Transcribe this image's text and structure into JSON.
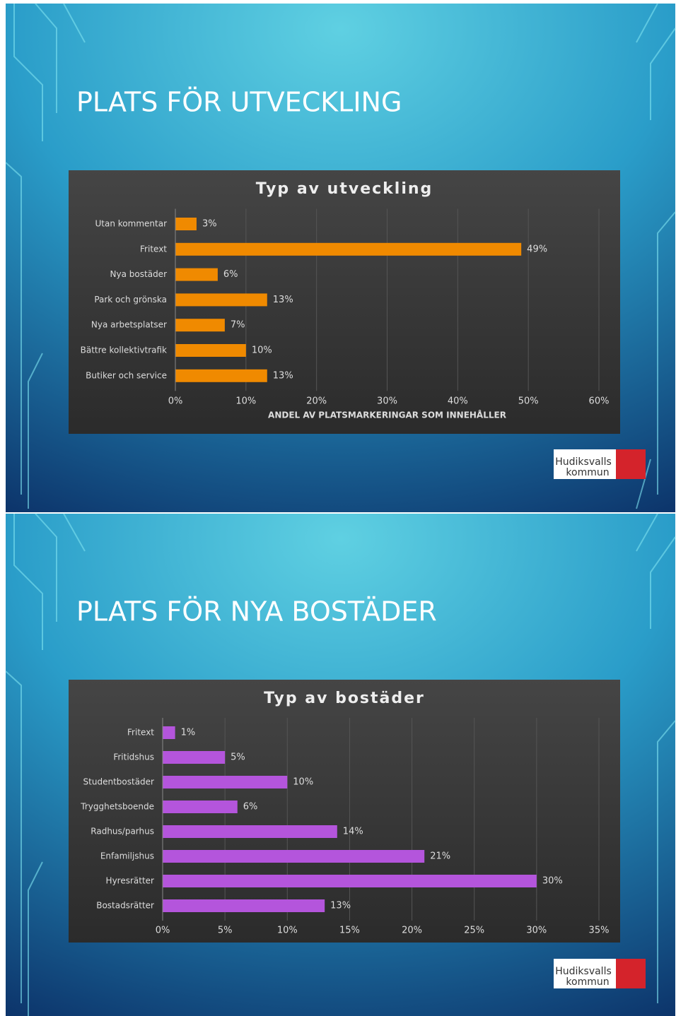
{
  "slides": [
    {
      "title": "PLATS FÖR UTVECKLING",
      "logo": [
        "Hudiksvalls",
        "kommun"
      ]
    },
    {
      "title": "PLATS FÖR NYA BOSTÄDER",
      "logo": [
        "Hudiksvalls",
        "kommun"
      ]
    }
  ],
  "chart_data": [
    {
      "type": "bar",
      "orientation": "horizontal",
      "title": "Typ av utveckling",
      "x_label": "ANDEL AV PLATSMARKERINGAR SOM INNEHÅLLER",
      "categories": [
        "Utan kommentar",
        "Fritext",
        "Nya bostäder",
        "Park och grönska",
        "Nya arbetsplatser",
        "Bättre kollektivtrafik",
        "Butiker och service"
      ],
      "values": [
        3,
        49,
        6,
        13,
        7,
        10,
        13
      ],
      "value_labels": [
        "3%",
        "49%",
        "6%",
        "13%",
        "7%",
        "10%",
        "13%"
      ],
      "color": "#f08a00",
      "xlim": [
        0,
        60
      ],
      "xticks": [
        {
          "value": 0,
          "label": "0%"
        },
        {
          "value": 10,
          "label": "10%"
        },
        {
          "value": 20,
          "label": "20%"
        },
        {
          "value": 30,
          "label": "30%"
        },
        {
          "value": 40,
          "label": "40%"
        },
        {
          "value": 50,
          "label": "50%"
        },
        {
          "value": 60,
          "label": "60%"
        }
      ],
      "grid": true
    },
    {
      "type": "bar",
      "orientation": "horizontal",
      "title": "Typ av bostäder",
      "categories": [
        "Fritext",
        "Fritidshus",
        "Studentbostäder",
        "Trygghetsboende",
        "Radhus/parhus",
        "Enfamiljshus",
        "Hyresrätter",
        "Bostadsrätter"
      ],
      "values": [
        1,
        5,
        10,
        6,
        14,
        21,
        30,
        13
      ],
      "value_labels": [
        "1%",
        "5%",
        "10%",
        "6%",
        "14%",
        "21%",
        "30%",
        "13%"
      ],
      "color": "#b455dc",
      "xlim": [
        0,
        35
      ],
      "xticks": [
        {
          "value": 0,
          "label": "0%"
        },
        {
          "value": 5,
          "label": "5%"
        },
        {
          "value": 10,
          "label": "10%"
        },
        {
          "value": 15,
          "label": "15%"
        },
        {
          "value": 20,
          "label": "20%"
        },
        {
          "value": 25,
          "label": "25%"
        },
        {
          "value": 30,
          "label": "30%"
        },
        {
          "value": 35,
          "label": "35%"
        }
      ],
      "grid": true
    }
  ]
}
